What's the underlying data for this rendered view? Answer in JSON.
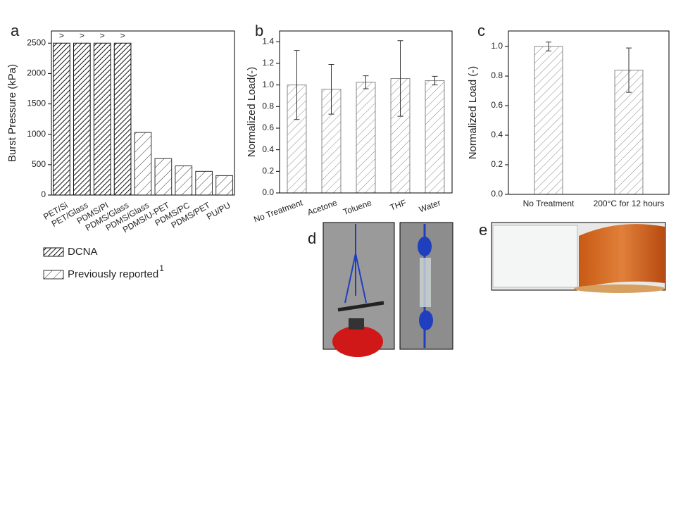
{
  "chart_data": [
    {
      "type": "bar",
      "panel_label": "a",
      "y_label": "Burst Pressure (kPa)",
      "categories": [
        "PET/Si",
        "PET/Glass",
        "PDMS/PI",
        "PDMS/Glass",
        "PDMS/Glass",
        "PDMS/U-PET",
        "PDMS/PC",
        "PDMS/PET",
        "PU/PU"
      ],
      "series": [
        {
          "name": "DCNA",
          "color": "#111111",
          "values": [
            2500,
            2500,
            2500,
            2500,
            null,
            null,
            null,
            null,
            null
          ],
          "value_labels": [
            ">",
            ">",
            ">",
            ">",
            null,
            null,
            null,
            null,
            null
          ]
        },
        {
          "name": "Previously reported",
          "superscript": "1",
          "color": "#333333",
          "values": [
            null,
            null,
            null,
            null,
            1030,
            600,
            480,
            390,
            320
          ]
        }
      ],
      "ylim": [
        0,
        2700
      ],
      "yticks": [
        0,
        500,
        1000,
        1500,
        2000,
        2500
      ]
    },
    {
      "type": "bar",
      "panel_label": "b",
      "y_label": "Normalized Load(-)",
      "categories": [
        "No Treatment",
        "Acetone",
        "Toluene",
        "THF",
        "Water"
      ],
      "series": [
        {
          "color": "#888888",
          "values": [
            1.0,
            0.96,
            1.025,
            1.06,
            1.04
          ],
          "errors": [
            0.32,
            0.23,
            0.06,
            0.35,
            0.04
          ]
        }
      ],
      "ylim": [
        0,
        1.5
      ],
      "yticks": [
        {
          "value": 0,
          "label": "0.0"
        },
        {
          "value": 0.2,
          "label": "0.2"
        },
        {
          "value": 0.4,
          "label": "0.4"
        },
        {
          "value": 0.6,
          "label": "0.6"
        },
        {
          "value": 0.8,
          "label": "0.8"
        },
        {
          "value": 1,
          "label": "1.0"
        },
        {
          "value": 1.2,
          "label": "1.2"
        },
        {
          "value": 1.4,
          "label": "1.4"
        }
      ]
    },
    {
      "type": "bar",
      "panel_label": "c",
      "y_label": "Normalized Load (-)",
      "categories": [
        "No Treatment",
        "200°C for 12 hours"
      ],
      "series": [
        {
          "color": "#888888",
          "values": [
            1.0,
            0.84
          ],
          "errors": [
            0.03,
            0.15
          ]
        }
      ],
      "ylim": [
        0,
        1.105
      ],
      "yticks": [
        {
          "value": 0,
          "label": "0.0"
        },
        {
          "value": 0.2,
          "label": "0.2"
        },
        {
          "value": 0.4,
          "label": "0.4"
        },
        {
          "value": 0.6,
          "label": "0.6"
        },
        {
          "value": 0.8,
          "label": "0.8"
        },
        {
          "value": 1,
          "label": "1.0"
        }
      ]
    }
  ],
  "photo_labels": [
    "d",
    "e"
  ]
}
